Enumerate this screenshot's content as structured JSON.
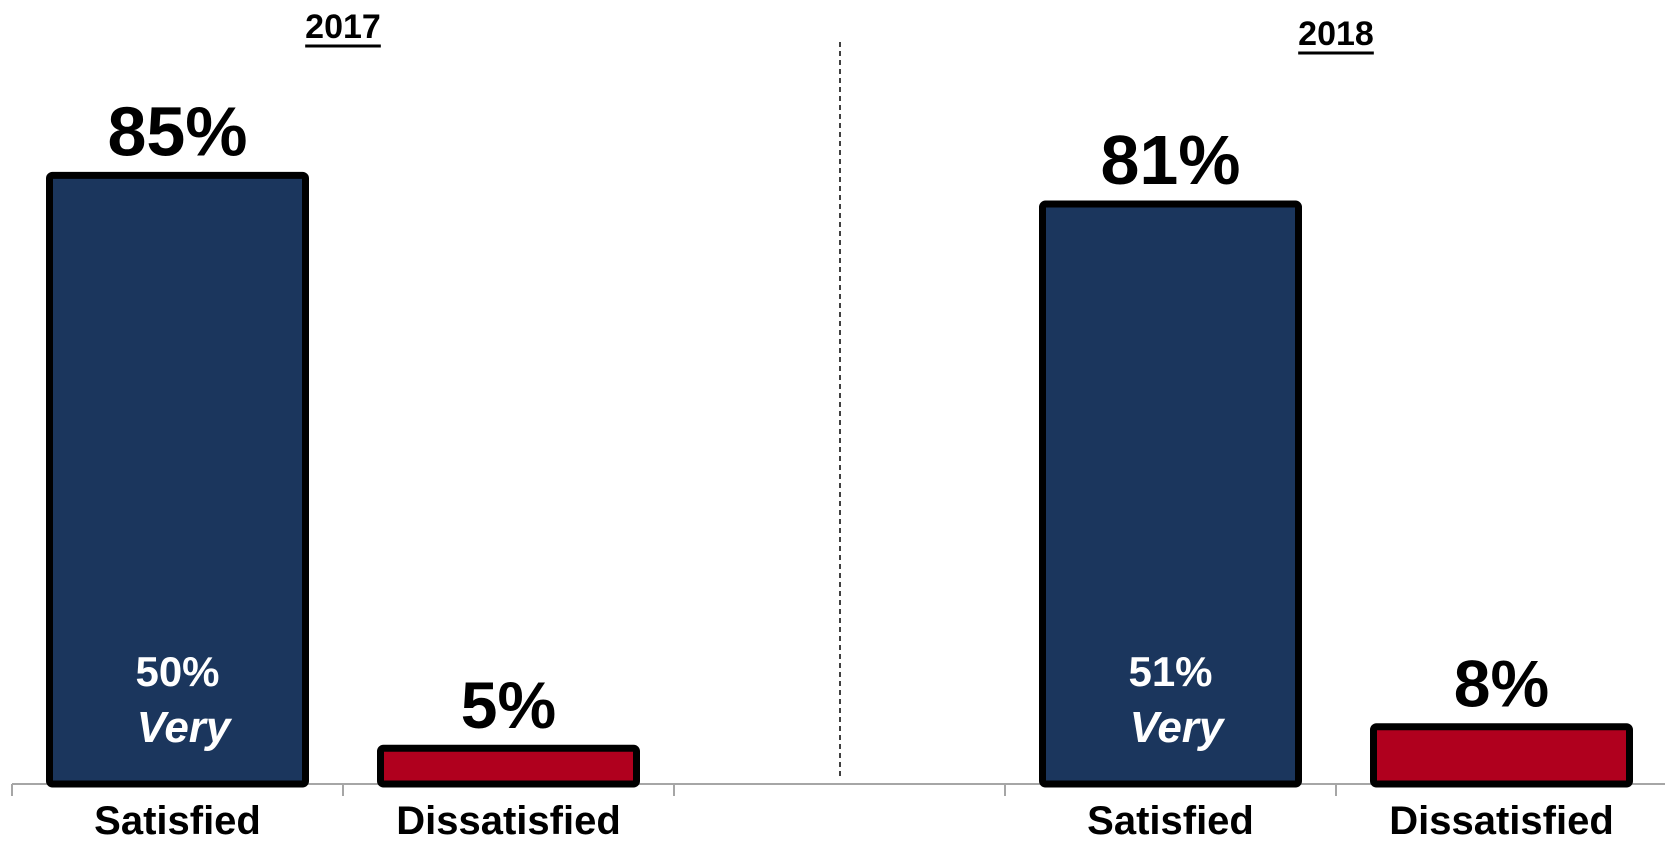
{
  "chart_data": {
    "type": "bar",
    "ylim": [
      0,
      100
    ],
    "grid": false,
    "panels": [
      {
        "title": "2017",
        "categories": [
          "Satisfied",
          "Dissatisfied"
        ],
        "values": [
          85,
          5
        ],
        "value_labels": [
          "85%",
          "5%"
        ],
        "inner_value": "50%",
        "inner_label": "Very",
        "colors": [
          "#1b365d",
          "#b0001e"
        ]
      },
      {
        "title": "2018",
        "categories": [
          "Satisfied",
          "Dissatisfied"
        ],
        "values": [
          81,
          8
        ],
        "value_labels": [
          "81%",
          "8%"
        ],
        "inner_value": "51%",
        "inner_label": "Very",
        "colors": [
          "#1b365d",
          "#b0001e"
        ]
      }
    ]
  }
}
